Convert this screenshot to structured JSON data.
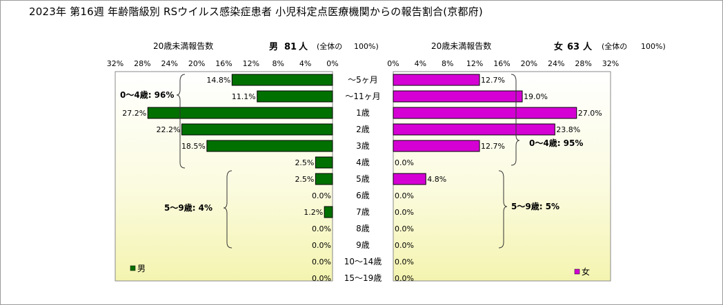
{
  "title": "2023年 第16週 年齢階級別 RSウイルス感染症患者 小児科定点医療機関からの報告割合(京都府)",
  "chart_data": {
    "type": "bar",
    "orientation": "horizontal-butterfly",
    "categories": [
      "〜5ヶ月",
      "〜11ヶ月",
      "1歳",
      "2歳",
      "3歳",
      "4歳",
      "5歳",
      "6歳",
      "7歳",
      "8歳",
      "9歳",
      "10〜14歳",
      "15〜19歳"
    ],
    "xlim": [
      0,
      32
    ],
    "ticks": [
      "32%",
      "28%",
      "24%",
      "20%",
      "16%",
      "12%",
      "8%",
      "4%",
      "0%"
    ],
    "ticks_right": [
      "0%",
      "4%",
      "8%",
      "12%",
      "16%",
      "20%",
      "24%",
      "28%",
      "32%"
    ],
    "series": [
      {
        "name": "男",
        "side": "left",
        "color": "#007000",
        "values": [
          14.8,
          11.1,
          27.2,
          22.2,
          18.5,
          2.5,
          2.5,
          0.0,
          1.2,
          0.0,
          0.0,
          0.0,
          0.0
        ],
        "labels": [
          "14.8%",
          "11.1%",
          "27.2%",
          "22.2%",
          "18.5%",
          "2.5%",
          "2.5%",
          "0.0%",
          "1.2%",
          "0.0%",
          "0.0%",
          "0.0%",
          "0.0%"
        ]
      },
      {
        "name": "女",
        "side": "right",
        "color": "#d400d4",
        "values": [
          12.7,
          19.0,
          27.0,
          23.8,
          12.7,
          0.0,
          4.8,
          0.0,
          0.0,
          0.0,
          0.0,
          0.0,
          0.0
        ],
        "labels": [
          "12.7%",
          "19.0%",
          "27.0%",
          "23.8%",
          "12.7%",
          "0.0%",
          "4.8%",
          "0.0%",
          "0.0%",
          "0.0%",
          "0.0%",
          "0.0%",
          "0.0%"
        ]
      }
    ],
    "left_header": {
      "subtitle": "20歳未満報告数",
      "sex": "男",
      "count": "81",
      "unit": "人",
      "total_label": "(全体の",
      "total_pct": "100%)"
    },
    "right_header": {
      "subtitle": "20歳未満報告数",
      "sex": "女",
      "count": "63",
      "unit": "人",
      "total_label": "(全体の",
      "total_pct": "100%)"
    },
    "annotations": {
      "left_0_4": "0〜4歳: 96%",
      "left_5_9": "5〜9歳: 4%",
      "right_0_4": "0〜4歳: 95%",
      "right_5_9": "5〜9歳: 5%"
    },
    "legend": {
      "left": {
        "label": "男",
        "position": "bottom-left"
      },
      "right": {
        "label": "女",
        "position": "bottom-right"
      }
    },
    "background": "gradient light-yellow"
  }
}
